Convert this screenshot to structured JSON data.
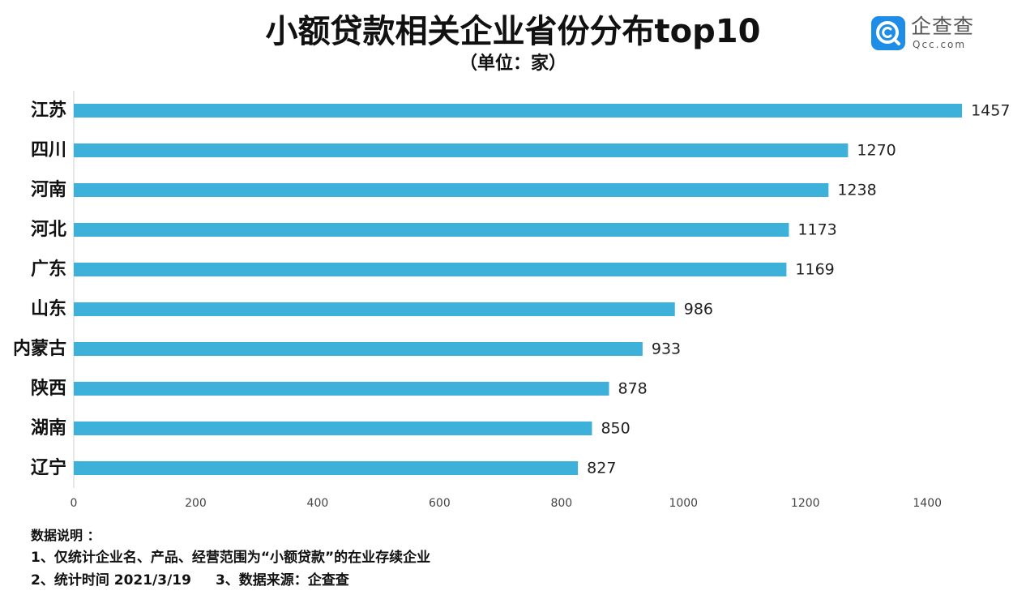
{
  "logo": {
    "icon": "qcc-logo-icon",
    "name": "企查查",
    "domain": "Qcc.com",
    "brand_color": "#1d8de8"
  },
  "chart_data": {
    "type": "bar",
    "orientation": "horizontal",
    "title": "小额贷款相关企业省份分布top10",
    "subtitle": "（单位：家）",
    "categories": [
      "江苏",
      "四川",
      "河南",
      "河北",
      "广东",
      "山东",
      "内蒙古",
      "陕西",
      "湖南",
      "辽宁"
    ],
    "values": [
      1457,
      1270,
      1238,
      1173,
      1169,
      986,
      933,
      878,
      850,
      827
    ],
    "xticks": [
      0,
      200,
      400,
      600,
      800,
      1000,
      1200,
      1400
    ],
    "xlim": [
      0,
      1530
    ],
    "grid": false,
    "data_labels": true,
    "bar_color": "#3eb1db"
  },
  "notes": {
    "heading": "数据说明 ：",
    "line1": "1、仅统计企业名、产品、经营范围为“小额贷款”的在业存续企业",
    "line2_part1": "2、统计时间 2021/3/19",
    "line2_part2": "3、数据来源：企查查"
  }
}
